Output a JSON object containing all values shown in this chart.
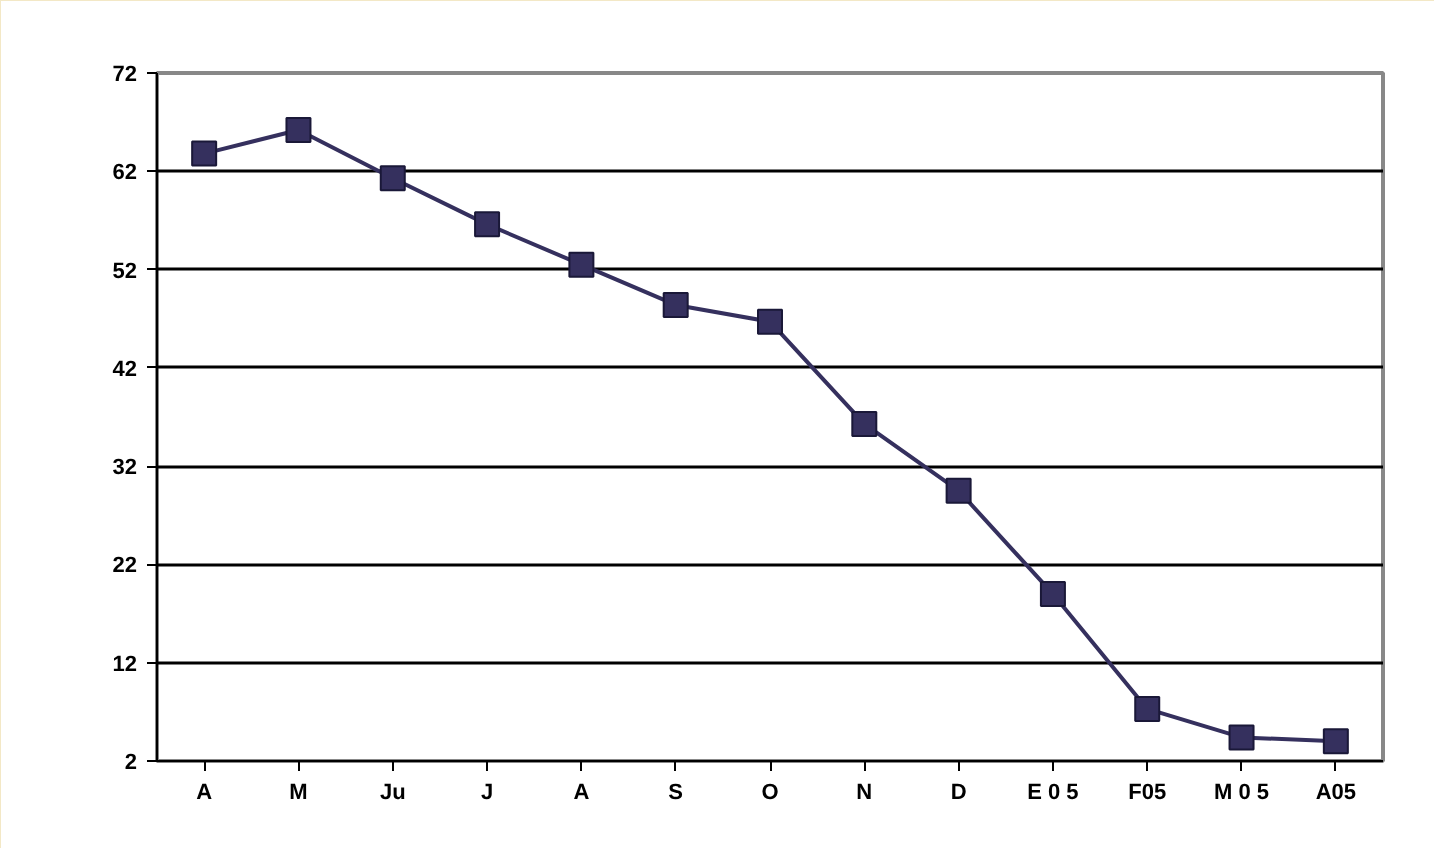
{
  "chart_data": {
    "type": "line",
    "categories": [
      "A",
      "M",
      "Ju",
      "J",
      "A",
      "S",
      "O",
      "N",
      "D",
      "E 0 5",
      "F05",
      "M 0 5",
      "A05"
    ],
    "series": [
      {
        "color": "#35305e",
        "values": [
          63.8,
          66.2,
          61.3,
          56.6,
          52.5,
          48.4,
          46.7,
          36.3,
          29.5,
          19,
          7.3,
          4.4,
          4.0
        ]
      }
    ],
    "ylim": [
      2,
      72
    ],
    "yticks": [
      2,
      12,
      22,
      32,
      42,
      52,
      62,
      72
    ],
    "grid": "y",
    "marker": "square",
    "line_style": "solid"
  }
}
